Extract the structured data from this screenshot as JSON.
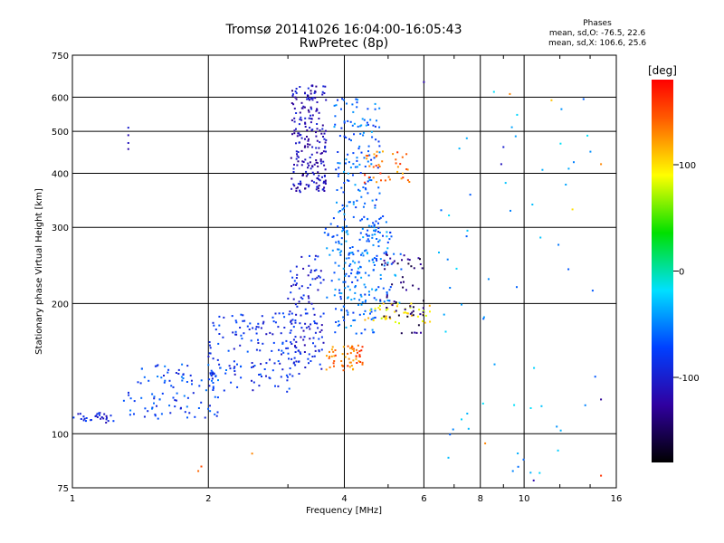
{
  "header": {
    "title": "Tromsø 20141026 16:04:00-16:05:43",
    "subtitle": "RwPretec (8p)"
  },
  "phase_stats": {
    "heading": "Phases",
    "o_line": "mean, sd,O: -76.5, 22.6",
    "x_line": "mean, sd,X: 106.6, 25.6"
  },
  "chart_data": {
    "type": "scatter",
    "title": "Tromsø 20141026 16:04:00-16:05:43",
    "subtitle": "RwPretec (8p)",
    "xlabel": "Frequency [MHz]",
    "ylabel": "Stationary phase Virtual Height [km]",
    "x_scale": "log",
    "y_scale": "log",
    "xlim": [
      1,
      16
    ],
    "ylim": [
      75,
      750
    ],
    "x_ticks": [
      1,
      2,
      4,
      6,
      8,
      10,
      16
    ],
    "x_tick_labels": [
      "1",
      "2",
      "4",
      "6",
      "8",
      "10",
      "16"
    ],
    "y_ticks": [
      75,
      100,
      200,
      300,
      400,
      500,
      600,
      750
    ],
    "y_tick_labels": [
      "75",
      "100",
      "200",
      "300",
      "400",
      "500",
      "600",
      "750"
    ],
    "grid": true,
    "colorbar": {
      "label": "[deg]",
      "range": [
        -180,
        180
      ],
      "tick_values": [
        100,
        0,
        -100
      ],
      "tick_labels": [
        "100",
        "0",
        "-100"
      ]
    },
    "clusters": [
      {
        "region": "low-frequency trace",
        "x_range": [
          1.0,
          1.25
        ],
        "y_range": [
          106,
          112
        ],
        "phase": -95,
        "count": 30
      },
      {
        "region": "rising trace",
        "x_range": [
          1.3,
          2.2
        ],
        "y_range": [
          108,
          145
        ],
        "phase": -75,
        "count": 110
      },
      {
        "region": "mid trace",
        "x_range": [
          2.0,
          3.2
        ],
        "y_range": [
          125,
          190
        ],
        "phase": -85,
        "count": 150
      },
      {
        "region": "F1 vertical column",
        "x_range": [
          3.0,
          3.6
        ],
        "y_range": [
          140,
          260
        ],
        "phase": -95,
        "count": 120
      },
      {
        "region": "high F2 cluster",
        "x_range": [
          3.05,
          3.65
        ],
        "y_range": [
          360,
          640
        ],
        "phase": -115,
        "count": 220
      },
      {
        "region": "F2 mid column",
        "x_range": [
          3.8,
          4.8
        ],
        "y_range": [
          170,
          600
        ],
        "phase": -60,
        "count": 260
      },
      {
        "region": "cyan band",
        "x_range": [
          3.6,
          5.4
        ],
        "y_range": [
          200,
          320
        ],
        "phase": -55,
        "count": 120
      },
      {
        "region": "orange lower patch",
        "x_range": [
          3.6,
          4.4
        ],
        "y_range": [
          140,
          160
        ],
        "phase": 140,
        "count": 60
      },
      {
        "region": "orange upper patch",
        "x_range": [
          4.4,
          5.6
        ],
        "y_range": [
          380,
          450
        ],
        "phase": 140,
        "count": 40
      },
      {
        "region": "yellow band",
        "x_range": [
          4.4,
          6.2
        ],
        "y_range": [
          180,
          200
        ],
        "phase": 95,
        "count": 45
      },
      {
        "region": "purple trace",
        "x_range": [
          4.8,
          6.0
        ],
        "y_range": [
          170,
          260
        ],
        "phase": -145,
        "count": 60
      },
      {
        "region": "scattered high frequency",
        "x_range": [
          6.0,
          15.0
        ],
        "y_range": [
          80,
          620
        ],
        "phase": -40,
        "count": 60
      }
    ],
    "isolated_points": [
      {
        "x": 1.33,
        "y": 490,
        "phase": -115
      },
      {
        "x": 1.33,
        "y": 470,
        "phase": -110
      },
      {
        "x": 1.33,
        "y": 455,
        "phase": -120
      },
      {
        "x": 1.33,
        "y": 510,
        "phase": -100
      },
      {
        "x": 1.9,
        "y": 82,
        "phase": 140
      },
      {
        "x": 1.93,
        "y": 84,
        "phase": 150
      },
      {
        "x": 2.5,
        "y": 90,
        "phase": 130
      },
      {
        "x": 6.8,
        "y": 88,
        "phase": -30
      },
      {
        "x": 8.2,
        "y": 95,
        "phase": 130
      },
      {
        "x": 10.5,
        "y": 78,
        "phase": -120
      },
      {
        "x": 14.8,
        "y": 80,
        "phase": 160
      },
      {
        "x": 14.8,
        "y": 120,
        "phase": -130
      },
      {
        "x": 14.8,
        "y": 420,
        "phase": 130
      },
      {
        "x": 12.8,
        "y": 330,
        "phase": 100
      },
      {
        "x": 11.5,
        "y": 590,
        "phase": 110
      },
      {
        "x": 9.3,
        "y": 610,
        "phase": 130
      },
      {
        "x": 6.0,
        "y": 650,
        "phase": -120
      },
      {
        "x": 9.0,
        "y": 460,
        "phase": -100
      },
      {
        "x": 8.9,
        "y": 420,
        "phase": -110
      }
    ]
  }
}
